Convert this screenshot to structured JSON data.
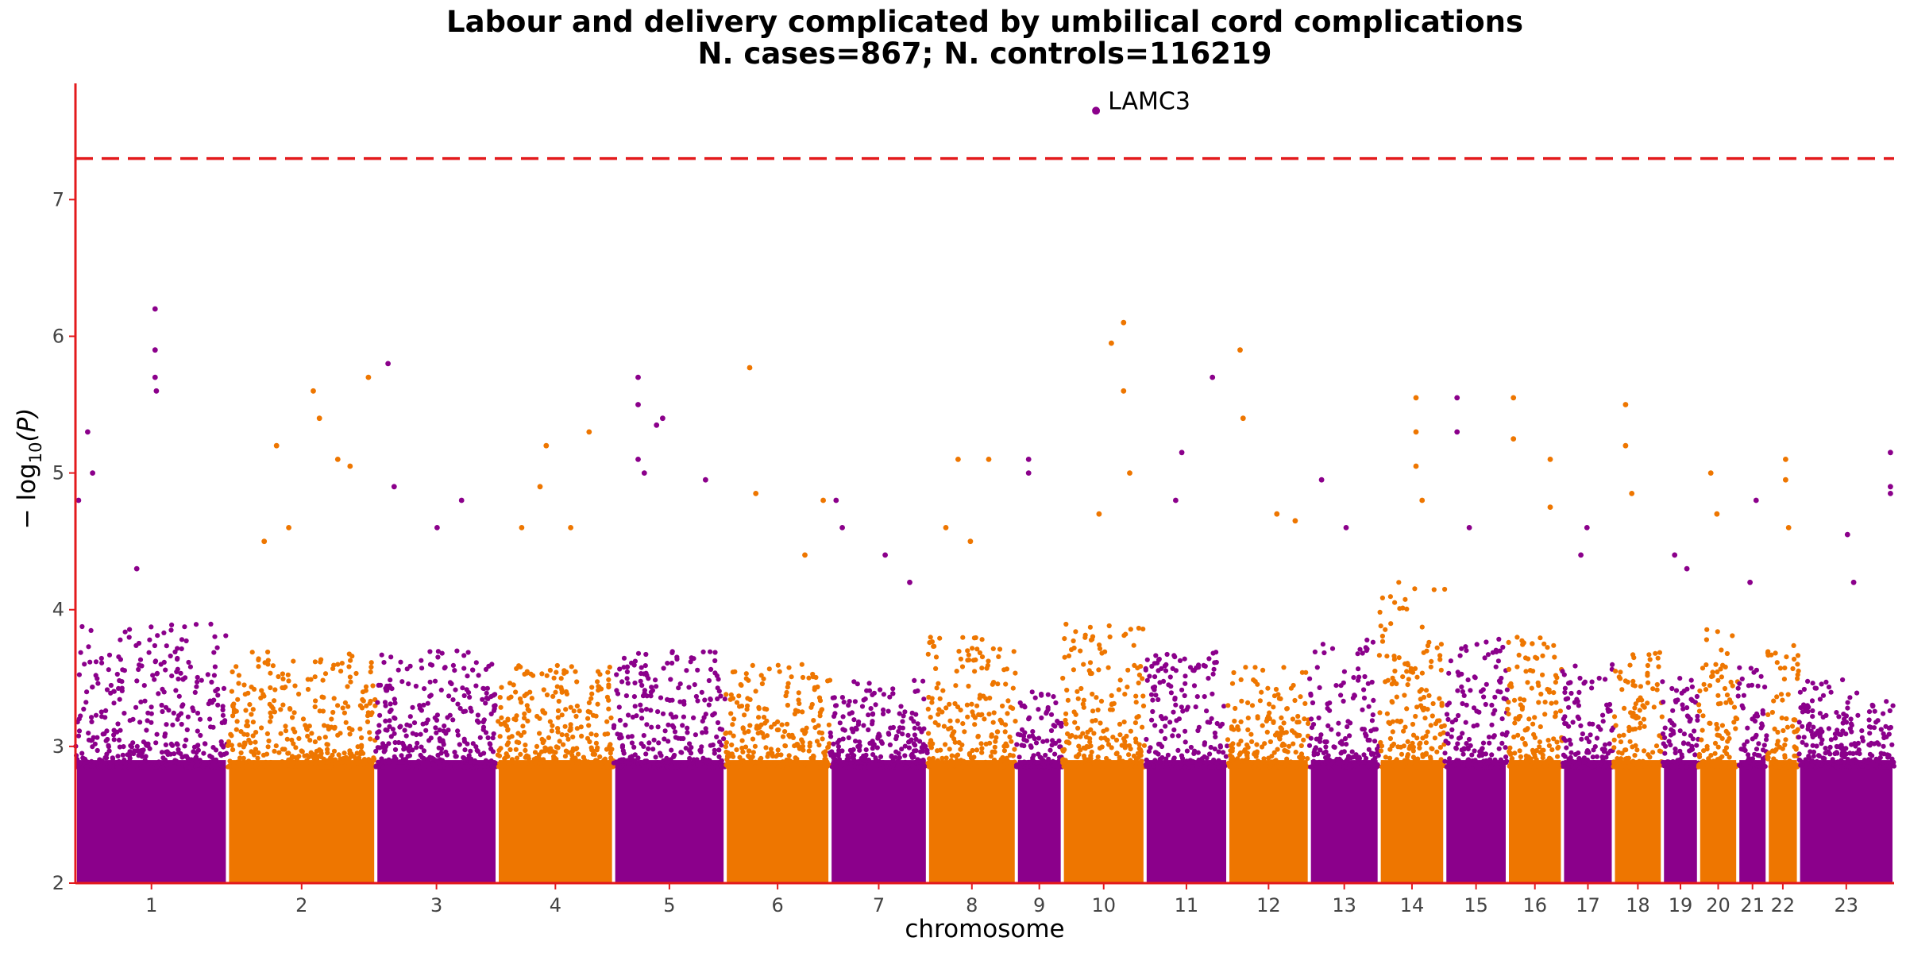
{
  "chart_data": {
    "type": "scatter",
    "title": "Labour and delivery complicated by umbilical cord complications",
    "subtitle": "N. cases=867; N. controls=116219",
    "xlabel": "chromosome",
    "ylabel_main": "− log",
    "ylabel_sub": "10",
    "ylabel_tail": "(P)",
    "ylim": [
      2,
      7.85
    ],
    "yticks": [
      {
        "value": 2,
        "label": "2"
      },
      {
        "value": 3,
        "label": "3"
      },
      {
        "value": 4,
        "label": "4"
      },
      {
        "value": 5,
        "label": "5"
      },
      {
        "value": 6,
        "label": "6"
      },
      {
        "value": 7,
        "label": "7"
      }
    ],
    "significance_line": 7.3,
    "colors": {
      "odd": "#8b008b",
      "even": "#ee7600",
      "threshold": "#e31a1c",
      "axis": "#e31a1c"
    },
    "chromosomes": [
      {
        "label": "1",
        "start": 0,
        "end": 248,
        "max": 3.9,
        "peaks": [
          [
            5,
            4.8
          ],
          [
            20,
            5.3
          ],
          [
            28,
            5.0
          ],
          [
            130,
            6.2
          ],
          [
            130,
            5.9
          ],
          [
            130,
            5.7
          ],
          [
            132,
            5.6
          ],
          [
            100,
            4.3
          ]
        ]
      },
      {
        "label": "2",
        "start": 248,
        "end": 490,
        "max": 3.7,
        "peaks": [
          [
            80,
            5.2
          ],
          [
            140,
            5.6
          ],
          [
            150,
            5.4
          ],
          [
            180,
            5.1
          ],
          [
            200,
            5.05
          ],
          [
            230,
            5.7
          ],
          [
            100,
            4.6
          ],
          [
            60,
            4.5
          ]
        ]
      },
      {
        "label": "3",
        "start": 490,
        "end": 688,
        "max": 3.7,
        "peaks": [
          [
            20,
            5.8
          ],
          [
            30,
            4.9
          ],
          [
            140,
            4.8
          ],
          [
            100,
            4.6
          ]
        ]
      },
      {
        "label": "4",
        "start": 688,
        "end": 878,
        "max": 3.6,
        "peaks": [
          [
            70,
            4.9
          ],
          [
            80,
            5.2
          ],
          [
            150,
            5.3
          ],
          [
            120,
            4.6
          ],
          [
            40,
            4.6
          ]
        ]
      },
      {
        "label": "5",
        "start": 878,
        "end": 1060,
        "max": 3.7,
        "peaks": [
          [
            40,
            5.7
          ],
          [
            40,
            5.5
          ],
          [
            40,
            5.1
          ],
          [
            50,
            5.0
          ],
          [
            80,
            5.4
          ],
          [
            70,
            5.35
          ],
          [
            150,
            4.95
          ]
        ]
      },
      {
        "label": "6",
        "start": 1060,
        "end": 1231,
        "max": 3.6,
        "peaks": [
          [
            40,
            5.77
          ],
          [
            50,
            4.85
          ],
          [
            130,
            4.4
          ],
          [
            160,
            4.8
          ]
        ]
      },
      {
        "label": "7",
        "start": 1231,
        "end": 1390,
        "max": 3.5,
        "peaks": [
          [
            10,
            4.8
          ],
          [
            20,
            4.6
          ],
          [
            90,
            4.4
          ],
          [
            130,
            4.2
          ]
        ]
      },
      {
        "label": "8",
        "start": 1390,
        "end": 1535,
        "max": 3.8,
        "peaks": [
          [
            50,
            5.1
          ],
          [
            100,
            5.1
          ],
          [
            30,
            4.6
          ],
          [
            70,
            4.5
          ]
        ]
      },
      {
        "label": "9",
        "start": 1535,
        "end": 1610,
        "max": 3.4,
        "peaks": [
          [
            20,
            5.1
          ],
          [
            20,
            5.0
          ]
        ]
      },
      {
        "label": "10",
        "start": 1610,
        "end": 1745,
        "max": 3.9,
        "peaks": [
          [
            80,
            5.95
          ],
          [
            100,
            6.1
          ],
          [
            100,
            5.6
          ],
          [
            110,
            5.0
          ],
          [
            60,
            4.7
          ]
        ]
      },
      {
        "label": "11",
        "start": 1745,
        "end": 1880,
        "max": 3.7,
        "peaks": [
          [
            60,
            5.15
          ],
          [
            110,
            5.7
          ],
          [
            50,
            4.8
          ]
        ]
      },
      {
        "label": "12",
        "start": 1880,
        "end": 2013,
        "max": 3.6,
        "peaks": [
          [
            20,
            5.9
          ],
          [
            25,
            5.4
          ],
          [
            80,
            4.7
          ],
          [
            110,
            4.65
          ]
        ]
      },
      {
        "label": "13",
        "start": 2013,
        "end": 2127,
        "max": 3.8,
        "peaks": [
          [
            20,
            4.95
          ],
          [
            60,
            4.6
          ]
        ]
      },
      {
        "label": "14",
        "start": 2127,
        "end": 2234,
        "max": 4.2,
        "peaks": [
          [
            60,
            5.55
          ],
          [
            60,
            5.3
          ],
          [
            60,
            5.05
          ],
          [
            70,
            4.8
          ]
        ]
      },
      {
        "label": "15",
        "start": 2234,
        "end": 2336,
        "max": 3.8,
        "peaks": [
          [
            20,
            5.55
          ],
          [
            20,
            5.3
          ],
          [
            40,
            4.6
          ]
        ]
      },
      {
        "label": "16",
        "start": 2336,
        "end": 2426,
        "max": 3.8,
        "peaks": [
          [
            10,
            5.55
          ],
          [
            10,
            5.25
          ],
          [
            70,
            5.1
          ],
          [
            70,
            4.75
          ]
        ]
      },
      {
        "label": "17",
        "start": 2426,
        "end": 2509,
        "max": 3.6,
        "peaks": [
          [
            40,
            4.6
          ],
          [
            30,
            4.4
          ]
        ]
      },
      {
        "label": "18",
        "start": 2509,
        "end": 2589,
        "max": 3.7,
        "peaks": [
          [
            20,
            5.5
          ],
          [
            20,
            5.2
          ],
          [
            30,
            4.85
          ]
        ]
      },
      {
        "label": "19",
        "start": 2589,
        "end": 2648,
        "max": 3.5,
        "peaks": [
          [
            20,
            4.4
          ],
          [
            40,
            4.3
          ]
        ]
      },
      {
        "label": "20",
        "start": 2648,
        "end": 2712,
        "max": 3.9,
        "peaks": [
          [
            20,
            5.0
          ],
          [
            30,
            4.7
          ]
        ]
      },
      {
        "label": "21",
        "start": 2712,
        "end": 2760,
        "max": 3.6,
        "peaks": [
          [
            30,
            4.8
          ],
          [
            20,
            4.2
          ]
        ]
      },
      {
        "label": "22",
        "start": 2760,
        "end": 2811,
        "max": 3.9,
        "peaks": [
          [
            30,
            5.1
          ],
          [
            30,
            4.95
          ],
          [
            35,
            4.6
          ]
        ]
      },
      {
        "label": "23",
        "start": 2811,
        "end": 2967,
        "max": 3.5,
        "peaks": [
          [
            150,
            5.15
          ],
          [
            150,
            4.9
          ],
          [
            150,
            4.85
          ],
          [
            80,
            4.55
          ],
          [
            90,
            4.2
          ]
        ]
      }
    ],
    "annotations": [
      {
        "label": "LAMC3",
        "chromosome": "9",
        "position": 130,
        "value": 7.65
      }
    ]
  }
}
